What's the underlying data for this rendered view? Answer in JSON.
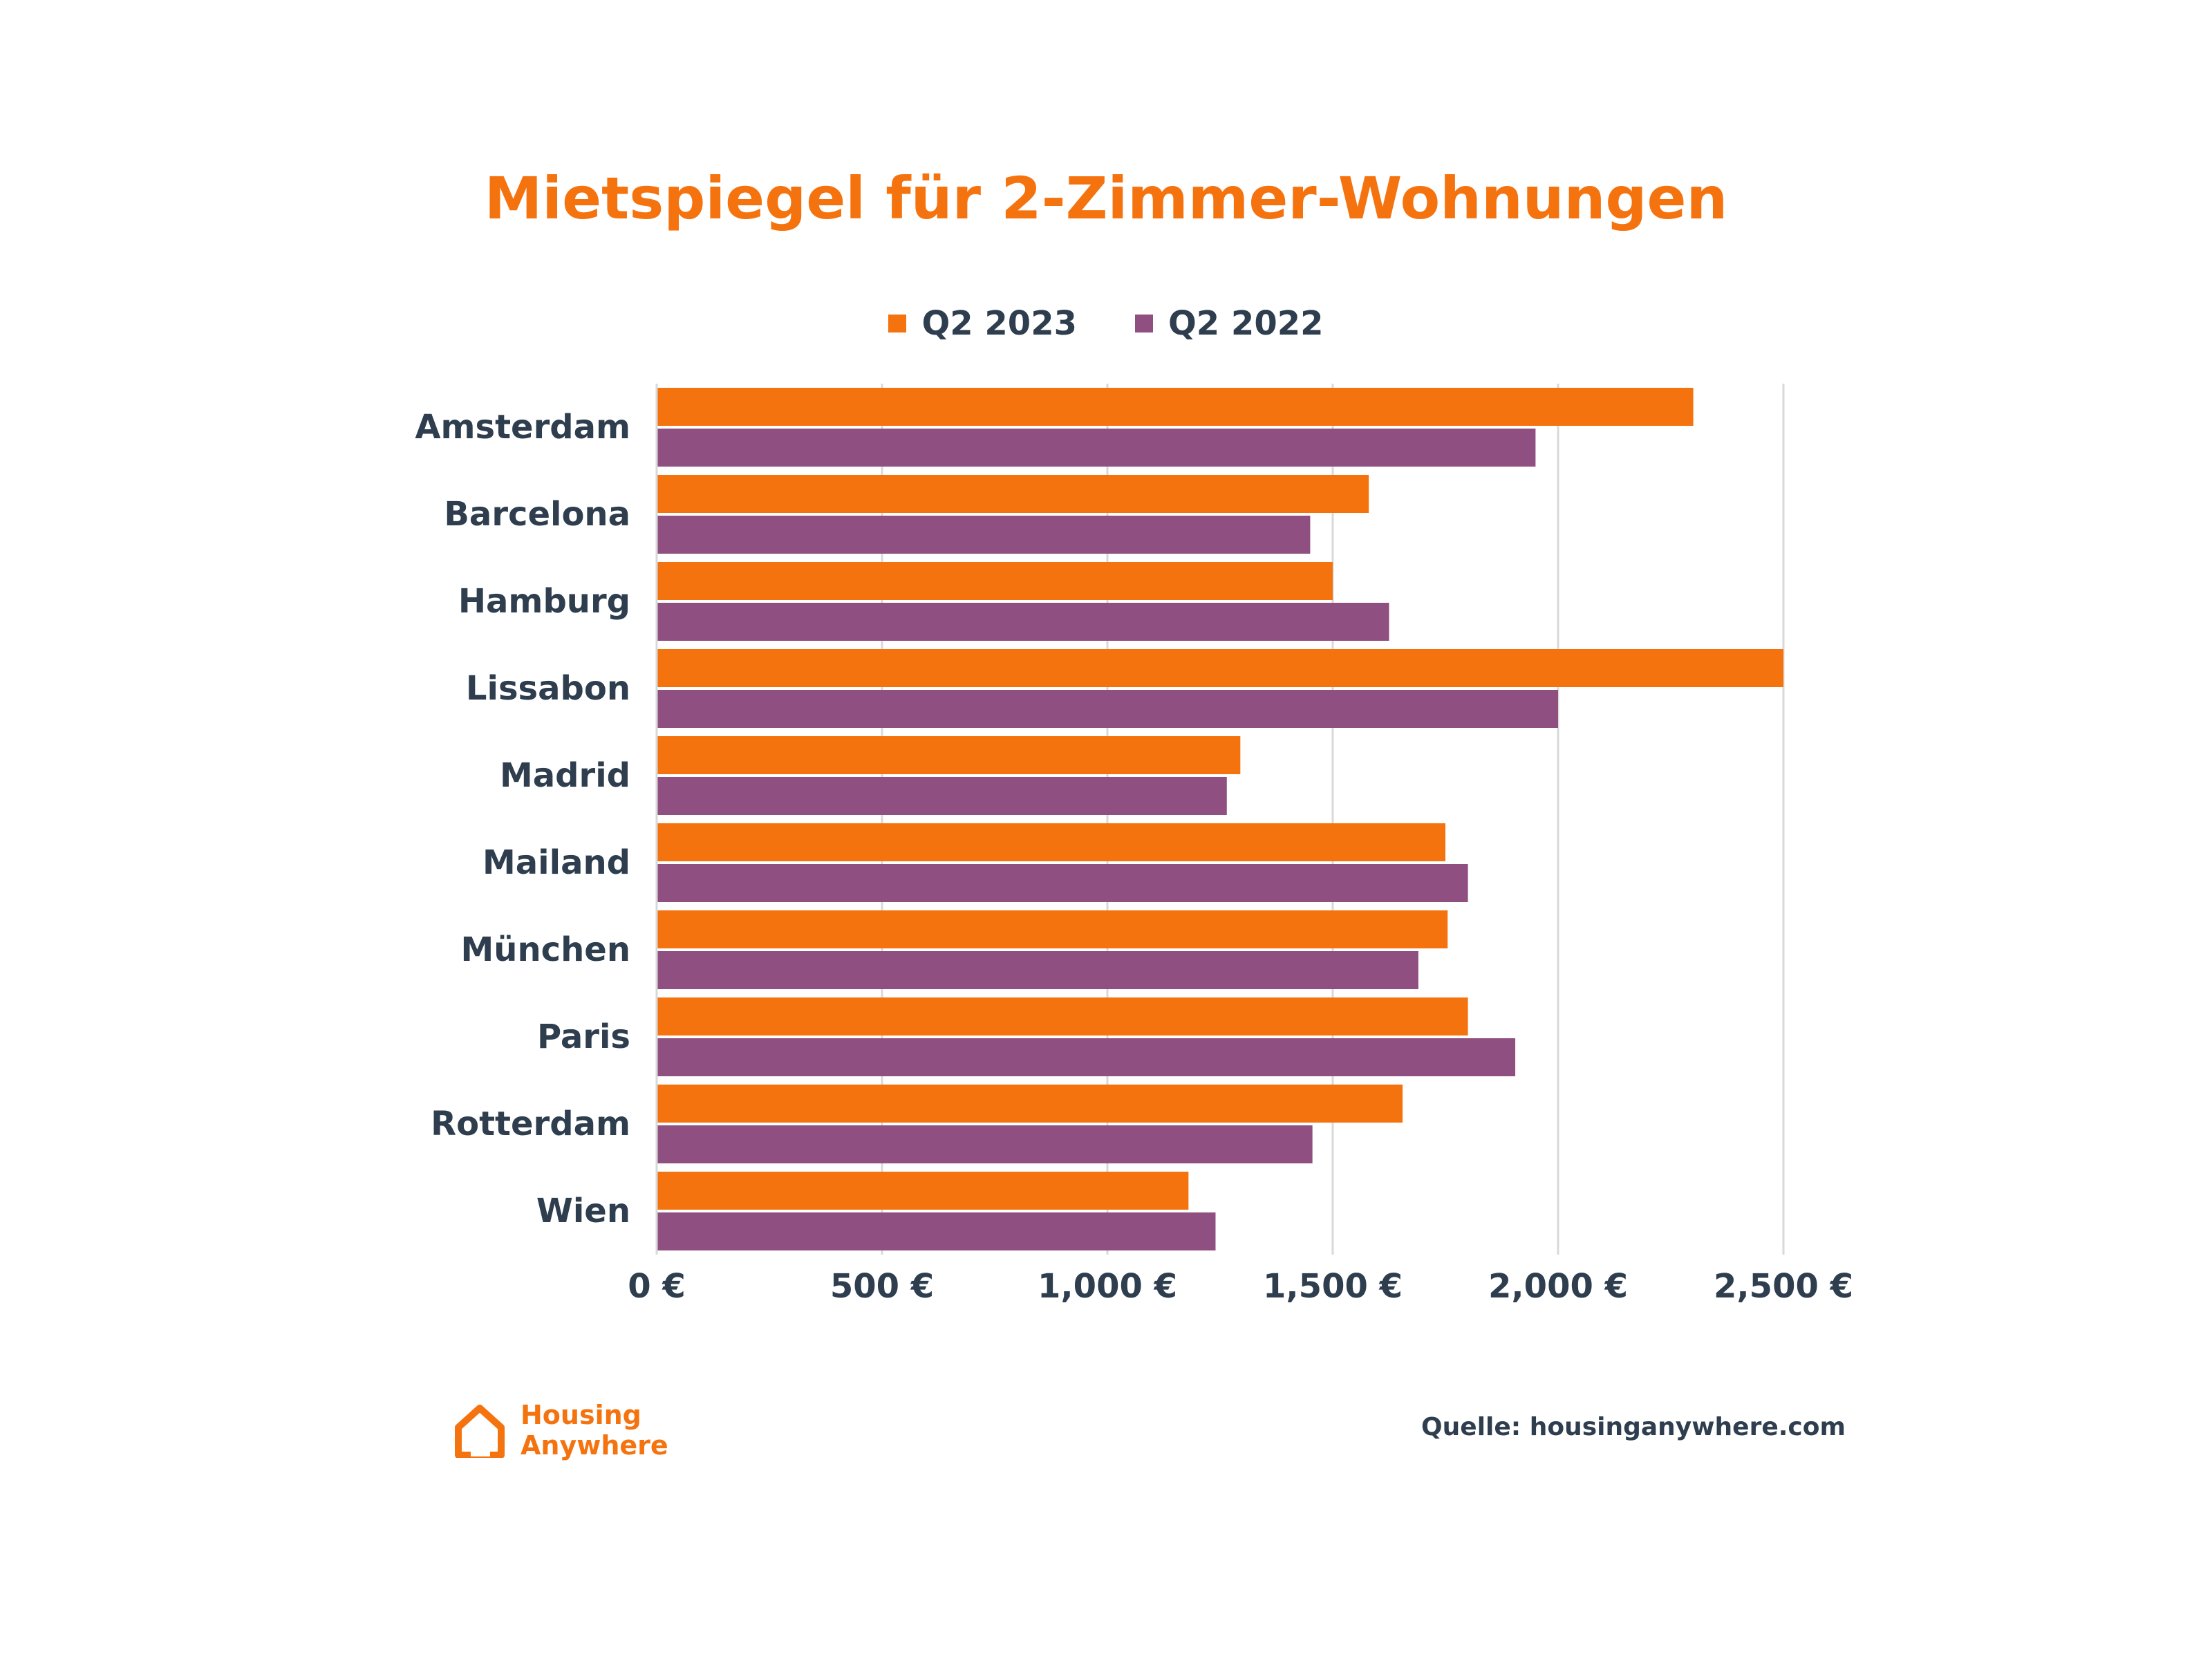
{
  "chart_data": {
    "type": "bar",
    "orientation": "horizontal",
    "title": "Mietspiegel für 2-Zimmer-Wohnungen",
    "categories": [
      "Amsterdam",
      "Barcelona",
      "Hamburg",
      "Lissabon",
      "Madrid",
      "Mailand",
      "München",
      "Paris",
      "Rotterdam",
      "Wien"
    ],
    "series": [
      {
        "name": "Q2 2023",
        "color": "#F5730F",
        "values": [
          2300,
          1580,
          1500,
          2500,
          1295,
          1750,
          1755,
          1800,
          1655,
          1180
        ]
      },
      {
        "name": "Q2 2022",
        "color": "#8F4F80",
        "values": [
          1950,
          1450,
          1625,
          2000,
          1265,
          1800,
          1690,
          1905,
          1455,
          1240
        ]
      }
    ],
    "xlim": [
      0,
      2500
    ],
    "xticks": [
      0,
      500,
      1000,
      1500,
      2000,
      2500
    ],
    "xtick_labels": [
      "0 €",
      "500 €",
      "1,000 €",
      "1,500 €",
      "2,000 €",
      "2,500 €"
    ],
    "xlabel": "",
    "ylabel": "",
    "grid": "vertical",
    "legend": "top-center"
  },
  "brand": {
    "line1": "Housing",
    "line2": "Anywhere",
    "color": "#F5730F"
  },
  "source": "Quelle: housinganywhere.com"
}
